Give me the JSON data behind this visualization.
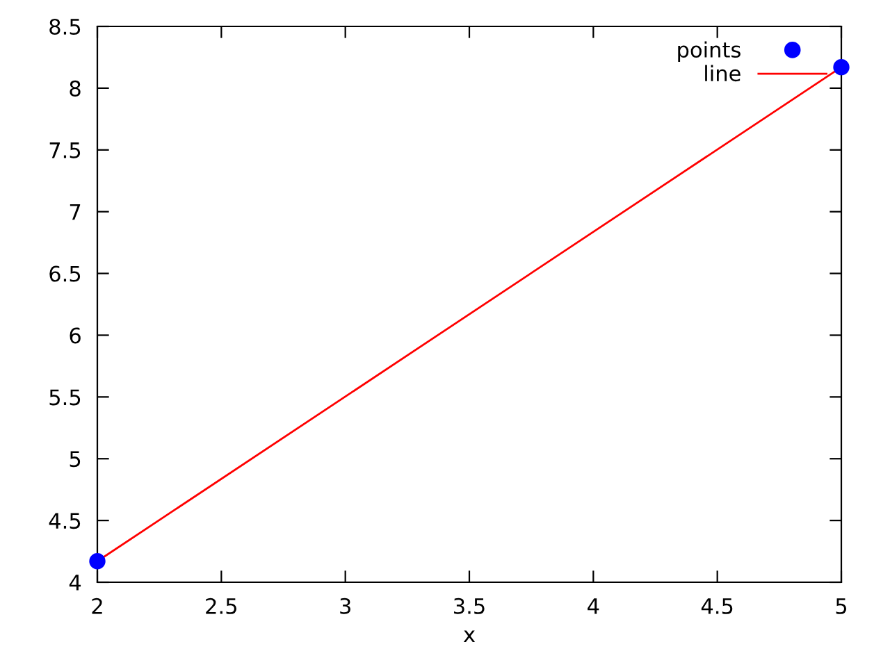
{
  "chart_data": {
    "type": "scatter",
    "xlabel": "x",
    "x": [
      2,
      5
    ],
    "xlim": [
      2,
      5
    ],
    "xticks": [
      2,
      2.5,
      3,
      3.5,
      4,
      4.5,
      5
    ],
    "ylim": [
      4,
      8.5
    ],
    "yticks": [
      4,
      4.5,
      5,
      5.5,
      6,
      6.5,
      7,
      7.5,
      8,
      8.5
    ],
    "grid": false,
    "legend": "top right",
    "series": [
      {
        "name": "points",
        "color": "#0000ff",
        "marker": "circle",
        "values": [
          4.17,
          8.17
        ]
      },
      {
        "name": "line",
        "type": "line",
        "color": "#ff0000",
        "marker": "none",
        "line_style": "solid",
        "values": [
          4.17,
          8.17
        ]
      }
    ]
  }
}
